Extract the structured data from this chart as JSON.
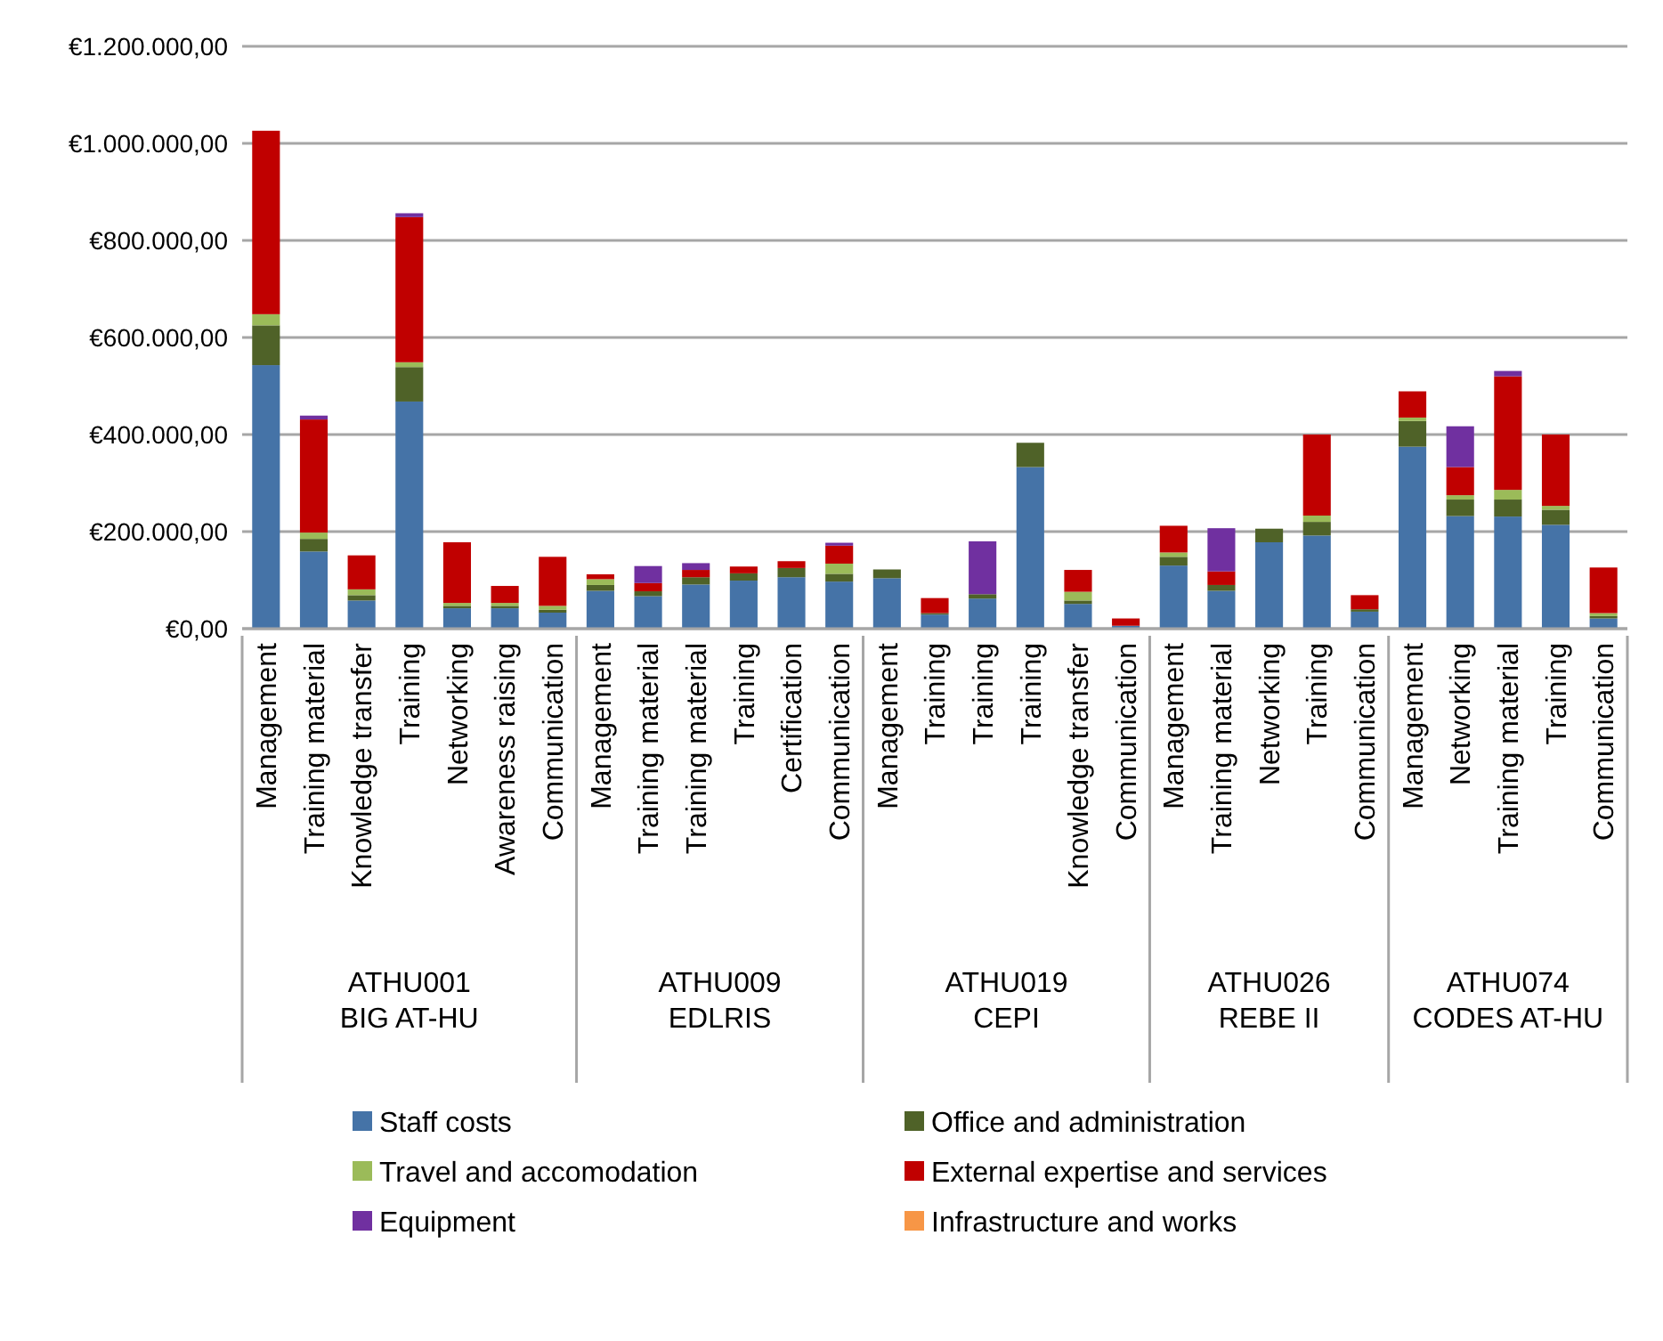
{
  "chart_data": {
    "type": "bar",
    "stacked": true,
    "categories": [
      "Management",
      "Training material",
      "Knowledge transfer",
      "Training",
      "Networking",
      "Awareness raising",
      "Communication",
      "Management",
      "Training material",
      "Training material",
      "Training",
      "Certification",
      "Communication",
      "Management",
      "Training",
      "Training",
      "Training",
      "Knowledge transfer",
      "Communication",
      "Management",
      "Training material",
      "Networking",
      "Training",
      "Communication",
      "Management",
      "Networking",
      "Training material",
      "Training",
      "Communication"
    ],
    "series": [
      {
        "name": "Staff costs",
        "color": "#4573a7",
        "values": [
          543000,
          159000,
          58000,
          468000,
          42000,
          42000,
          33000,
          78000,
          67000,
          91000,
          99000,
          106000,
          97000,
          104000,
          29000,
          62000,
          333000,
          51000,
          6000,
          130000,
          78000,
          178000,
          192000,
          35000,
          375000,
          232000,
          231000,
          214000,
          21000
        ]
      },
      {
        "name": "Office and administration",
        "color": "#4f6228",
        "values": [
          82000,
          26000,
          11000,
          71000,
          5000,
          5000,
          6000,
          12000,
          10000,
          15000,
          15000,
          19000,
          16000,
          18000,
          3000,
          9000,
          50000,
          7000,
          0,
          18000,
          12000,
          28000,
          28000,
          5000,
          53000,
          34000,
          35000,
          31000,
          5000
        ]
      },
      {
        "name": "Travel and accomodation",
        "color": "#9bbb59",
        "values": [
          23000,
          13000,
          12000,
          10000,
          6000,
          6000,
          8000,
          12000,
          0,
          0,
          0,
          0,
          21000,
          0,
          0,
          0,
          0,
          18000,
          0,
          9000,
          0,
          0,
          13000,
          0,
          7000,
          9000,
          20000,
          8000,
          6000
        ]
      },
      {
        "name": "External expertise and services",
        "color": "#c00000",
        "values": [
          378000,
          233000,
          70000,
          299000,
          125000,
          35000,
          101000,
          10000,
          17000,
          15000,
          14000,
          14000,
          37000,
          0,
          31000,
          0,
          0,
          45000,
          15000,
          55000,
          28000,
          0,
          167000,
          29000,
          54000,
          58000,
          234000,
          147000,
          94000
        ]
      },
      {
        "name": "Equipment",
        "color": "#7030a0",
        "values": [
          0,
          8000,
          0,
          8000,
          0,
          0,
          0,
          0,
          35000,
          14000,
          0,
          0,
          6000,
          0,
          0,
          109000,
          0,
          0,
          0,
          0,
          89000,
          0,
          0,
          0,
          0,
          84000,
          11000,
          0,
          0
        ]
      },
      {
        "name": "Infrastructure and works",
        "color": "#f79646",
        "values": [
          0,
          0,
          0,
          0,
          0,
          0,
          0,
          0,
          0,
          0,
          0,
          0,
          0,
          0,
          0,
          0,
          0,
          0,
          0,
          0,
          0,
          0,
          0,
          0,
          0,
          0,
          0,
          0,
          0
        ]
      }
    ],
    "ylim": [
      0,
      1200000
    ],
    "yticks": [
      {
        "value": 0,
        "label": "€0,00"
      },
      {
        "value": 200000,
        "label": "€200.000,00"
      },
      {
        "value": 400000,
        "label": "€400.000,00"
      },
      {
        "value": 600000,
        "label": "€600.000,00"
      },
      {
        "value": 800000,
        "label": "€800.000,00"
      },
      {
        "value": 1000000,
        "label": "€1.000.000,00"
      },
      {
        "value": 1200000,
        "label": "€1.200.000,00"
      }
    ],
    "grid": "y",
    "legend": "bottom",
    "annotations": [
      "ATHU001\nBIG AT-HU",
      "ATHU009\nEDLRIS",
      "ATHU019\nCEPI",
      "ATHU026\nREBE II",
      "ATHU074\nCODES AT-HU"
    ]
  }
}
